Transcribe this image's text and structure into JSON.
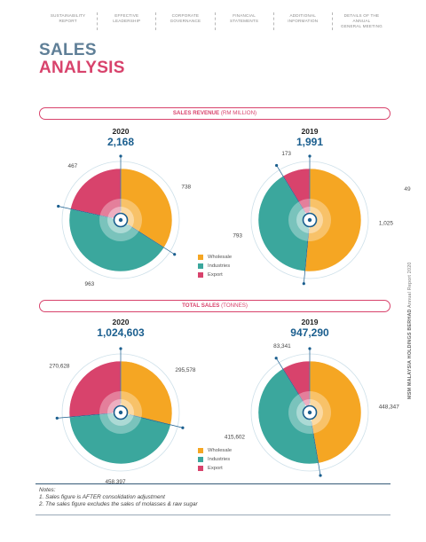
{
  "nav": [
    {
      "line1": "SUSTAINABILITY",
      "line2": "REPORT"
    },
    {
      "line1": "EFFECTIVE",
      "line2": "LEADERSHIP"
    },
    {
      "line1": "CORPORATE",
      "line2": "GOVERNANCE"
    },
    {
      "line1": "FINANCIAL",
      "line2": "STATEMENTS"
    },
    {
      "line1": "ADDITIONAL",
      "line2": "INFORMATION"
    },
    {
      "line1": "DETAILS OF THE ANNUAL",
      "line2": "GENERAL MEETING"
    }
  ],
  "title": {
    "line1": "SALES",
    "line2": "ANALYSIS"
  },
  "sections": {
    "revenue": {
      "label": "SALES REVENUE",
      "unit": " (RM MILLION)"
    },
    "tonnes": {
      "label": "TOTAL SALES",
      "unit": " (TONNES)"
    }
  },
  "colors": {
    "wholesale": "#f5a623",
    "industries": "#3ba79d",
    "export": "#d8436c"
  },
  "legend": [
    "Wholesale",
    "Industries",
    "Export"
  ],
  "chart_data": [
    {
      "type": "pie",
      "section": "revenue",
      "year": "2020",
      "total": "2,168",
      "categories": [
        "Wholesale",
        "Industries",
        "Export"
      ],
      "values": [
        738,
        963,
        467
      ],
      "labels": [
        "738",
        "963",
        "467"
      ]
    },
    {
      "type": "pie",
      "section": "revenue",
      "year": "2019",
      "total": "1,991",
      "categories": [
        "Wholesale",
        "Industries",
        "Export"
      ],
      "values": [
        1025,
        793,
        173
      ],
      "labels": [
        "1,025",
        "793",
        "173"
      ]
    },
    {
      "type": "pie",
      "section": "tonnes",
      "year": "2020",
      "total": "1,024,603",
      "categories": [
        "Wholesale",
        "Industries",
        "Export"
      ],
      "values": [
        295578,
        458397,
        270628
      ],
      "labels": [
        "295,578",
        "458,397",
        "270,628"
      ]
    },
    {
      "type": "pie",
      "section": "tonnes",
      "year": "2019",
      "total": "947,290",
      "categories": [
        "Wholesale",
        "Industries",
        "Export"
      ],
      "values": [
        448347,
        415602,
        83341
      ],
      "labels": [
        "448,347",
        "415,602",
        "83,341"
      ]
    }
  ],
  "side": {
    "page_number": "49",
    "company": "MSM MALAYSIA HOLDINGS BERHAD",
    "report": "  Annual Report 2020"
  },
  "notes": {
    "heading": "Notes:",
    "items": [
      "1.   Sales figure is AFTER consolidation adjustment",
      "2.   The sales figure excludes the sales of molasses & raw sugar"
    ]
  }
}
